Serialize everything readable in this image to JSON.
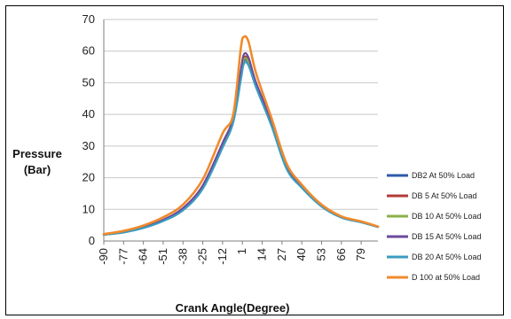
{
  "chart_data": {
    "type": "line",
    "title": "",
    "ylabel_lines": [
      "Pressure",
      "(Bar)"
    ],
    "xlabel": "Crank Angle(Degree)",
    "ylim": [
      0,
      70
    ],
    "xlim": [
      -90,
      90
    ],
    "y_ticks": [
      0,
      10,
      20,
      30,
      40,
      50,
      60,
      70
    ],
    "x_ticks": [
      -90,
      -77,
      -64,
      -51,
      -38,
      -25,
      -12,
      1,
      14,
      27,
      40,
      53,
      66,
      79
    ],
    "y_tick_labels": [
      "0",
      "10",
      "20",
      "30",
      "40",
      "50",
      "60",
      "70"
    ],
    "x_tick_labels": [
      "-90",
      "-77",
      "-64",
      "-51",
      "-38",
      "-25",
      "-12",
      "1",
      "14",
      "27",
      "40",
      "53",
      "66",
      "79"
    ],
    "grid": "horizontal",
    "legend_position": "right",
    "x": [
      -90,
      -77,
      -64,
      -51,
      -38,
      -25,
      -12,
      -5,
      0,
      2,
      5,
      10,
      20,
      30,
      40,
      53,
      66,
      79,
      90
    ],
    "series": [
      {
        "name": "DB2 At 50% Load",
        "color": "#2e5ca8",
        "values": [
          2,
          2.8,
          4.2,
          6.5,
          10,
          17,
          30,
          38,
          52,
          57,
          56,
          49,
          37,
          23,
          17,
          11,
          7.5,
          6,
          4.5
        ]
      },
      {
        "name": "DB 5 At 50% Load",
        "color": "#b23a35",
        "values": [
          2,
          2.8,
          4.3,
          6.6,
          10.2,
          17.3,
          30.5,
          38.5,
          53,
          58,
          57,
          49.5,
          37.5,
          23.2,
          17.1,
          11.1,
          7.6,
          6,
          4.5
        ]
      },
      {
        "name": "DB 10 At 50% Load",
        "color": "#8ab046",
        "values": [
          2,
          2.8,
          4.2,
          6.5,
          10.1,
          17.2,
          30.3,
          38.2,
          52.5,
          57.5,
          56.5,
          49.3,
          37.2,
          23.1,
          17,
          11,
          7.5,
          6,
          4.5
        ]
      },
      {
        "name": "DB 15 At 50% Load",
        "color": "#6c4a9b",
        "values": [
          2,
          2.9,
          4.4,
          6.7,
          10.4,
          17.6,
          31,
          39,
          54,
          59,
          58,
          50,
          38,
          23.5,
          17.3,
          11.2,
          7.6,
          6.1,
          4.5
        ]
      },
      {
        "name": "DB 20 At 50% Load",
        "color": "#3a9cc0",
        "values": [
          2,
          2.7,
          4.1,
          6.3,
          9.7,
          16.5,
          29.5,
          37.5,
          51,
          56,
          55.5,
          48.5,
          36.5,
          22.8,
          16.8,
          10.9,
          7.4,
          5.9,
          4.4
        ]
      },
      {
        "name": "D 100 at 50% Load",
        "color": "#f08a2c",
        "values": [
          2.2,
          3.2,
          4.9,
          7.5,
          11.5,
          19.5,
          34,
          40,
          61,
          64.5,
          63,
          53,
          39,
          24.5,
          17.8,
          11.5,
          7.8,
          6.2,
          4.6
        ]
      }
    ]
  }
}
